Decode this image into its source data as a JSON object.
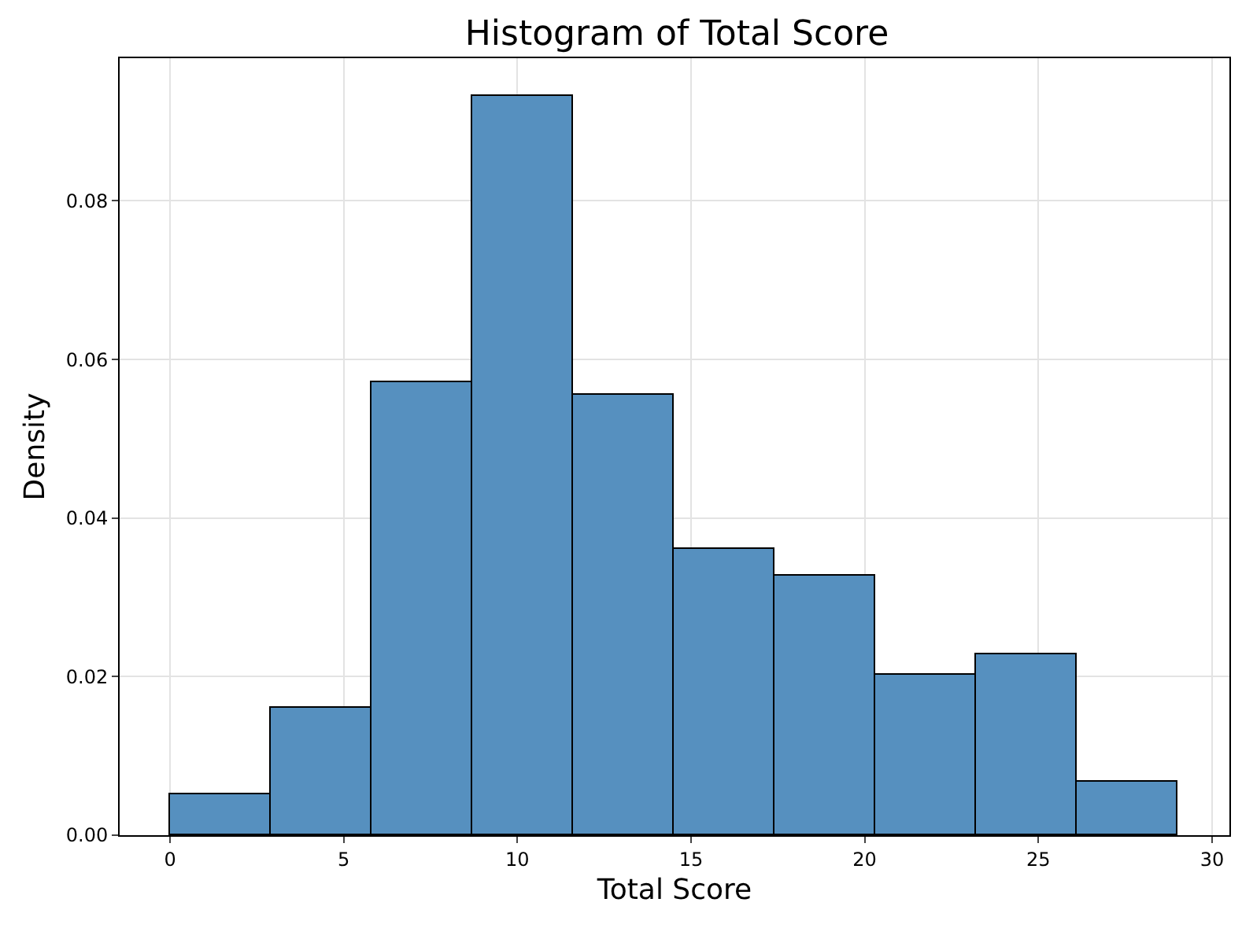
{
  "chart_data": {
    "type": "histogram",
    "title": "Histogram of Total Score",
    "xlabel": "Total Score",
    "ylabel": "Density",
    "bins": [
      0,
      2.9,
      5.8,
      8.7,
      11.6,
      14.5,
      17.4,
      20.3,
      23.2,
      26.1,
      29
    ],
    "values": [
      0.0052,
      0.0161,
      0.0572,
      0.0933,
      0.0556,
      0.0361,
      0.0328,
      0.0202,
      0.0228,
      0.0067
    ],
    "color": "#5690bf",
    "xlim": [
      -1.45,
      30.5
    ],
    "xticks": [
      0,
      5,
      10,
      15,
      20,
      25,
      30
    ],
    "ylim": [
      0,
      0.098
    ],
    "yticks": [
      {
        "value": 0,
        "label": "0.00"
      },
      {
        "value": 0.02,
        "label": "0.02"
      },
      {
        "value": 0.04,
        "label": "0.04"
      },
      {
        "value": 0.06,
        "label": "0.06"
      },
      {
        "value": 0.08,
        "label": "0.08"
      }
    ],
    "grid": true
  }
}
